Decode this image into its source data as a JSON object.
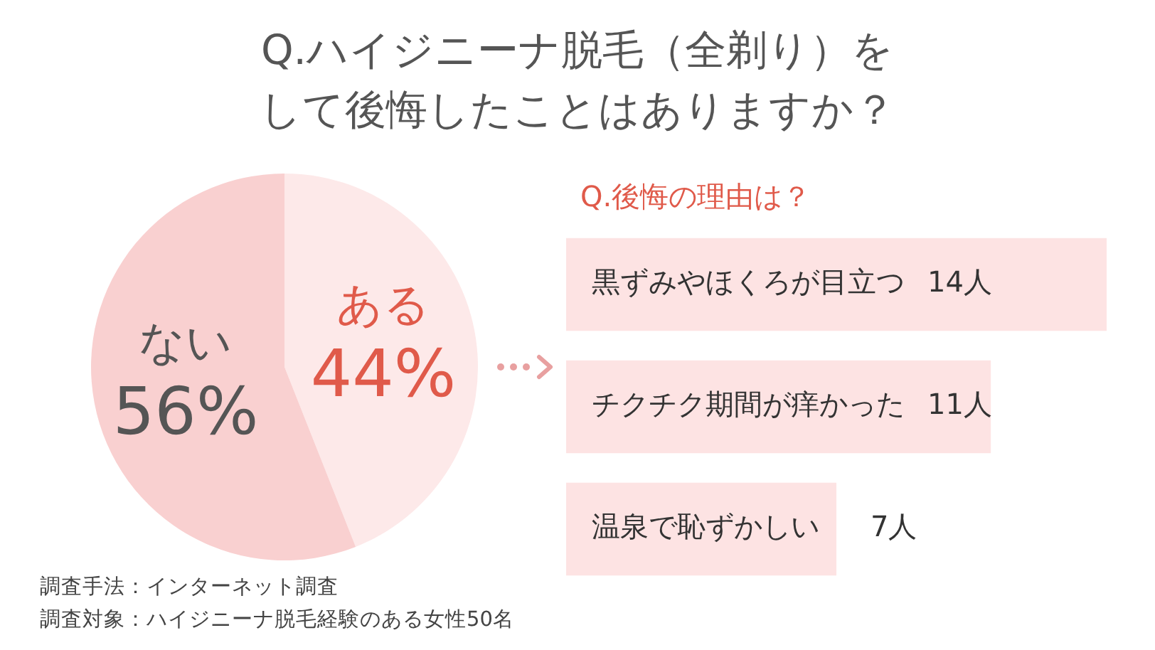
{
  "chart_data": [
    {
      "type": "pie",
      "title": "Q.ハイジニーナ脱毛（全剃り）をして後悔したことはありますか？",
      "categories": [
        "ある",
        "ない"
      ],
      "values": [
        44,
        56
      ],
      "colors": [
        "#fde9e9",
        "#f9d0d0"
      ],
      "value_labels": [
        "44%",
        "56%"
      ],
      "legend": false,
      "annotations": [
        "調査手法：インターネット調査",
        "調査対象：ハイジニーナ脱毛経験のある女性50名"
      ]
    },
    {
      "type": "bar",
      "orientation": "horizontal",
      "title": "Q.後悔の理由は？",
      "categories": [
        "黒ずみやほくろが目立つ",
        "チクチク期間が痒かった",
        "温泉で恥ずかしい　"
      ],
      "values": [
        14,
        11,
        7
      ],
      "color": "#fde3e3",
      "value_labels": [
        "14人",
        "11人",
        "7人"
      ],
      "legend": false
    }
  ]
}
